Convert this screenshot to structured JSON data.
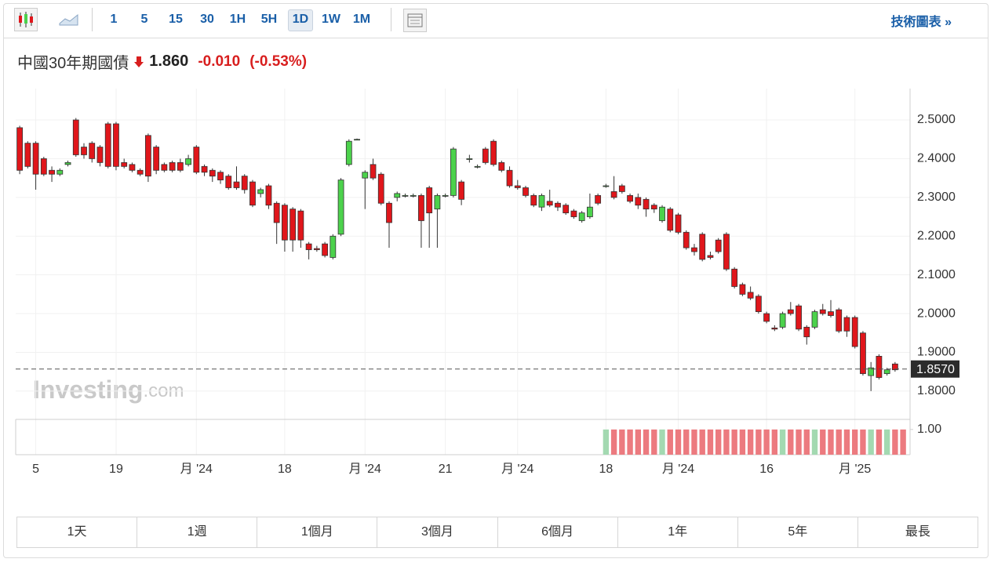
{
  "toolbar": {
    "intervals": [
      "1",
      "5",
      "15",
      "30",
      "1H",
      "5H",
      "1D",
      "1W",
      "1M"
    ],
    "link": "技術圖表 »"
  },
  "header": {
    "instrument": "中國30年期國債",
    "price": "1.860",
    "change": "-0.010",
    "change_pct": "(-0.53%)"
  },
  "watermark": {
    "brand": "Investing",
    "suffix": ".com"
  },
  "range_buttons": [
    "1天",
    "1週",
    "1個月",
    "3個月",
    "6個月",
    "1年",
    "5年",
    "最長"
  ],
  "chart_data": {
    "type": "candlestick",
    "up_color": "#4cd24c",
    "down_color": "#e0161b",
    "categories": [
      null,
      null,
      "5",
      null,
      null,
      null,
      null,
      null,
      null,
      null,
      null,
      null,
      "19",
      null,
      null,
      null,
      null,
      null,
      null,
      null,
      null,
      null,
      "月 '24",
      null,
      null,
      null,
      null,
      null,
      null,
      null,
      null,
      null,
      null,
      "18",
      null,
      null,
      null,
      null,
      null,
      null,
      null,
      null,
      null,
      "月 '24",
      null,
      null,
      null,
      null,
      null,
      null,
      null,
      null,
      null,
      "21",
      null,
      null,
      null,
      null,
      null,
      null,
      null,
      null,
      "月 '24",
      null,
      null,
      null,
      null,
      null,
      null,
      null,
      null,
      null,
      null,
      "18",
      null,
      null,
      null,
      null,
      null,
      null,
      null,
      null,
      "月 '24",
      null,
      null,
      null,
      null,
      null,
      null,
      null,
      null,
      null,
      null,
      "16",
      null,
      null,
      null,
      null,
      null,
      null,
      null,
      null,
      null,
      null,
      "月 '25",
      null,
      null,
      null,
      null,
      null
    ],
    "open": [
      2.48,
      2.44,
      2.44,
      2.4,
      2.37,
      2.36,
      2.385,
      2.5,
      2.43,
      2.44,
      2.43,
      2.49,
      2.49,
      2.39,
      2.385,
      2.37,
      2.46,
      2.43,
      2.385,
      2.39,
      2.39,
      2.385,
      2.43,
      2.38,
      2.37,
      2.365,
      2.355,
      2.34,
      2.355,
      2.34,
      2.31,
      2.33,
      2.285,
      2.28,
      2.27,
      2.265,
      2.18,
      2.168,
      2.18,
      2.145,
      2.205,
      2.385,
      2.45,
      2.35,
      2.385,
      2.36,
      2.285,
      2.3,
      2.305,
      2.305,
      2.305,
      2.325,
      2.27,
      2.305,
      2.305,
      2.34,
      2.4,
      2.38,
      2.425,
      2.445,
      2.39,
      2.37,
      2.33,
      2.325,
      2.305,
      2.275,
      2.29,
      2.285,
      2.28,
      2.265,
      2.24,
      2.25,
      2.305,
      2.33,
      2.315,
      2.33,
      2.305,
      2.3,
      2.295,
      2.28,
      2.24,
      2.27,
      2.255,
      2.21,
      2.17,
      2.205,
      2.15,
      2.19,
      2.205,
      2.115,
      2.075,
      2.055,
      2.045,
      2.0,
      1.963,
      1.965,
      2.01,
      2.02,
      1.965,
      1.965,
      2.01,
      2.005,
      2.01,
      1.99,
      1.99,
      1.95,
      1.84,
      1.89,
      1.845,
      1.87
    ],
    "high": [
      2.485,
      2.445,
      2.445,
      2.405,
      2.38,
      2.375,
      2.395,
      2.505,
      2.44,
      2.445,
      2.435,
      2.495,
      2.495,
      2.4,
      2.39,
      2.375,
      2.465,
      2.435,
      2.39,
      2.395,
      2.4,
      2.41,
      2.435,
      2.385,
      2.375,
      2.37,
      2.36,
      2.38,
      2.36,
      2.345,
      2.325,
      2.335,
      2.29,
      2.285,
      2.275,
      2.27,
      2.185,
      2.175,
      2.185,
      2.205,
      2.35,
      2.45,
      2.452,
      2.37,
      2.4,
      2.365,
      2.29,
      2.315,
      2.31,
      2.31,
      2.31,
      2.33,
      2.31,
      2.31,
      2.43,
      2.345,
      2.41,
      2.385,
      2.43,
      2.45,
      2.395,
      2.38,
      2.345,
      2.33,
      2.31,
      2.31,
      2.32,
      2.29,
      2.285,
      2.27,
      2.265,
      2.31,
      2.31,
      2.335,
      2.355,
      2.335,
      2.31,
      2.31,
      2.3,
      2.285,
      2.28,
      2.275,
      2.26,
      2.215,
      2.18,
      2.21,
      2.16,
      2.195,
      2.21,
      2.12,
      2.08,
      2.07,
      2.05,
      2.005,
      1.97,
      2.005,
      2.03,
      2.025,
      1.97,
      2.01,
      2.025,
      2.035,
      2.015,
      1.995,
      1.995,
      1.955,
      1.875,
      1.895,
      1.86,
      1.875
    ],
    "low": [
      2.36,
      2.375,
      2.32,
      2.355,
      2.34,
      2.355,
      2.38,
      2.405,
      2.4,
      2.39,
      2.38,
      2.375,
      2.37,
      2.375,
      2.365,
      2.355,
      2.34,
      2.36,
      2.365,
      2.365,
      2.365,
      2.38,
      2.36,
      2.355,
      2.34,
      2.335,
      2.32,
      2.32,
      2.31,
      2.275,
      2.3,
      2.27,
      2.18,
      2.16,
      2.16,
      2.17,
      2.14,
      2.16,
      2.145,
      2.14,
      2.2,
      2.38,
      2.448,
      2.27,
      2.345,
      2.28,
      2.17,
      2.29,
      2.3,
      2.3,
      2.17,
      2.17,
      2.17,
      2.3,
      2.3,
      2.28,
      2.39,
      2.375,
      2.385,
      2.38,
      2.365,
      2.325,
      2.32,
      2.3,
      2.275,
      2.265,
      2.275,
      2.265,
      2.255,
      2.245,
      2.235,
      2.245,
      2.28,
      2.325,
      2.295,
      2.31,
      2.285,
      2.27,
      2.25,
      2.26,
      2.235,
      2.21,
      2.205,
      2.165,
      2.15,
      2.135,
      2.14,
      2.155,
      2.11,
      2.065,
      2.045,
      2.035,
      2.0,
      1.975,
      1.955,
      1.96,
      1.995,
      1.955,
      1.92,
      1.96,
      1.995,
      1.99,
      1.95,
      1.94,
      1.91,
      1.84,
      1.8,
      1.83,
      1.84,
      1.85
    ],
    "close": [
      2.37,
      2.38,
      2.36,
      2.36,
      2.36,
      2.37,
      2.39,
      2.41,
      2.41,
      2.4,
      2.39,
      2.38,
      2.38,
      2.38,
      2.37,
      2.36,
      2.355,
      2.37,
      2.37,
      2.37,
      2.37,
      2.4,
      2.365,
      2.365,
      2.355,
      2.345,
      2.325,
      2.325,
      2.32,
      2.28,
      2.32,
      2.28,
      2.235,
      2.19,
      2.19,
      2.19,
      2.165,
      2.165,
      2.15,
      2.2,
      2.345,
      2.445,
      2.45,
      2.365,
      2.35,
      2.285,
      2.235,
      2.31,
      2.305,
      2.305,
      2.24,
      2.26,
      2.305,
      2.305,
      2.425,
      2.295,
      2.4,
      2.38,
      2.39,
      2.385,
      2.37,
      2.33,
      2.325,
      2.305,
      2.28,
      2.305,
      2.28,
      2.275,
      2.26,
      2.25,
      2.26,
      2.275,
      2.285,
      2.33,
      2.3,
      2.315,
      2.29,
      2.28,
      2.27,
      2.27,
      2.275,
      2.215,
      2.21,
      2.17,
      2.16,
      2.14,
      2.145,
      2.16,
      2.115,
      2.07,
      2.05,
      2.04,
      2.005,
      1.98,
      1.96,
      2.0,
      2.0,
      1.96,
      1.94,
      2.005,
      2.0,
      1.995,
      1.955,
      1.955,
      1.915,
      1.845,
      1.86,
      1.835,
      1.855,
      1.855
    ],
    "ylim": [
      1.737,
      2.581
    ],
    "yticks": [
      {
        "value": 2.5,
        "label": "2.5000"
      },
      {
        "value": 2.4,
        "label": "2.4000"
      },
      {
        "value": 2.3,
        "label": "2.3000"
      },
      {
        "value": 2.2,
        "label": "2.2000"
      },
      {
        "value": 2.1,
        "label": "2.1000"
      },
      {
        "value": 2.0,
        "label": "2.0000"
      },
      {
        "value": 1.9,
        "label": "1.9000"
      },
      {
        "value": 1.8,
        "label": "1.8000"
      }
    ],
    "last_price": {
      "value": 1.857,
      "label": "1.8570"
    },
    "grid": true,
    "volume": {
      "up_color": "#a3d9b1",
      "down_color": "#ec7a7f",
      "ylim": [
        0,
        1.4
      ],
      "yticks": [
        {
          "value": 1,
          "label": "1.00"
        }
      ],
      "values": [
        null,
        null,
        null,
        null,
        null,
        null,
        null,
        null,
        null,
        null,
        null,
        null,
        null,
        null,
        null,
        null,
        null,
        null,
        null,
        null,
        null,
        null,
        null,
        null,
        null,
        null,
        null,
        null,
        null,
        null,
        null,
        null,
        null,
        null,
        null,
        null,
        null,
        null,
        null,
        null,
        null,
        null,
        null,
        null,
        null,
        null,
        null,
        null,
        null,
        null,
        null,
        null,
        null,
        null,
        null,
        null,
        null,
        null,
        null,
        null,
        null,
        null,
        null,
        null,
        null,
        null,
        null,
        null,
        null,
        null,
        null,
        null,
        null,
        1,
        1,
        1,
        1,
        1,
        1,
        1,
        1,
        1,
        1,
        1,
        1,
        1,
        1,
        1,
        1,
        1,
        1,
        1,
        1,
        1,
        1,
        1,
        1,
        1,
        1,
        1,
        1,
        1,
        1,
        1,
        1,
        1,
        1,
        1,
        1,
        1,
        1
      ]
    }
  }
}
